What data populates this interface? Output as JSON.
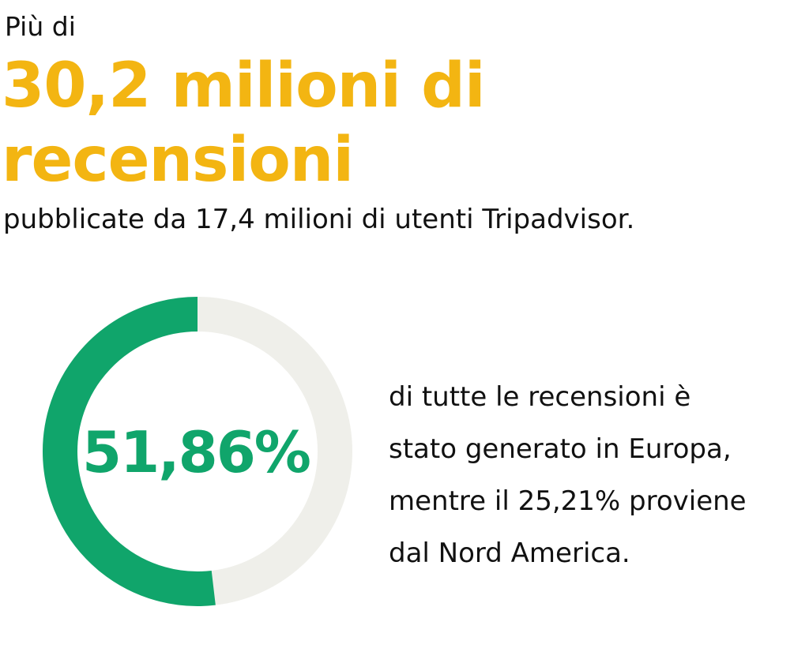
{
  "colors": {
    "accent": "#F3B512",
    "primary": "#10A56B",
    "track": "#EFEFEA",
    "text": "#111111"
  },
  "header": {
    "intro": "Più di",
    "headline_lines": [
      "30,2 milioni di",
      "recensioni"
    ],
    "subline": "pubblicate da 17,4 milioni di utenti Tripadvisor."
  },
  "chart_data": {
    "type": "pie",
    "variant": "donut",
    "values": [
      51.86,
      48.14
    ],
    "center_label": "51,86%",
    "description_lines": [
      "di tutte le recensioni è",
      "stato generato in Europa,",
      "mentre il 25,21% proviene",
      "dal Nord America."
    ]
  }
}
